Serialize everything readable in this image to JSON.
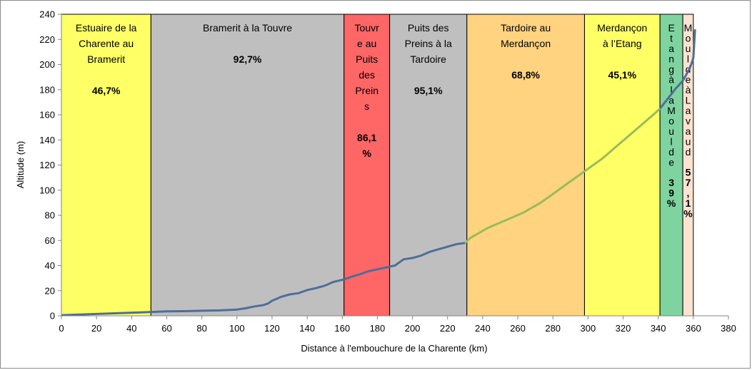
{
  "chart_data": {
    "type": "line",
    "title": "",
    "xlabel": "Distance à l'embouchure de la Charente (km)",
    "ylabel": "Altitude (m)",
    "xlim": [
      0,
      380
    ],
    "ylim": [
      0,
      240
    ],
    "xticks": [
      0,
      20,
      40,
      60,
      80,
      100,
      120,
      140,
      160,
      180,
      200,
      220,
      240,
      260,
      280,
      300,
      320,
      340,
      360,
      380
    ],
    "yticks": [
      0,
      20,
      40,
      60,
      80,
      100,
      120,
      140,
      160,
      180,
      200,
      220,
      240
    ],
    "grid": false,
    "segments": [
      {
        "x0": 0,
        "x1": 51,
        "color": "#ffff66",
        "label_lines": [
          "Estuaire de la",
          "Charente au",
          "Bramerit"
        ],
        "pct_lines": [
          "46,7%"
        ]
      },
      {
        "x0": 51,
        "x1": 161,
        "color": "#bfbfbf",
        "label_lines": [
          "Bramerit à la Touvre"
        ],
        "pct_lines": [
          "92,7%"
        ]
      },
      {
        "x0": 161,
        "x1": 187,
        "color": "#ff6666",
        "label_lines": [
          "Touvr",
          "e au",
          "Puits",
          "des",
          "Prein",
          "s"
        ],
        "pct_lines": [
          "86,1",
          "%"
        ]
      },
      {
        "x0": 187,
        "x1": 231,
        "color": "#bfbfbf",
        "label_lines": [
          "Puits des",
          "Preins à la",
          "Tardoire"
        ],
        "pct_lines": [
          "95,1%"
        ]
      },
      {
        "x0": 231,
        "x1": 298,
        "color": "#ffd37f",
        "label_lines": [
          "Tardoire au",
          "Merdançon"
        ],
        "pct_lines": [
          "68,8%"
        ]
      },
      {
        "x0": 298,
        "x1": 341,
        "color": "#ffff66",
        "label_lines": [
          "Merdançon",
          "à l’Etang"
        ],
        "pct_lines": [
          "45,1%"
        ]
      },
      {
        "x0": 341,
        "x1": 354,
        "color": "#7fd39f",
        "label_lines": [
          "E",
          "t",
          "a",
          "n",
          "g",
          "à",
          "l",
          "a",
          "M",
          "o",
          "u",
          "l",
          "d",
          "e"
        ],
        "pct_lines": [
          "3",
          "9",
          "%"
        ]
      },
      {
        "x0": 354,
        "x1": 360,
        "color": "#fbe3d1",
        "label_lines": [
          "M",
          "o",
          "u",
          "l",
          "d",
          "e",
          "à",
          "L",
          "a",
          "v",
          "a",
          "u",
          "d"
        ],
        "pct_lines": [
          "5",
          "7",
          ",",
          "1",
          "%"
        ]
      }
    ],
    "series": [
      {
        "points": [
          [
            0,
            0.5
          ],
          [
            10,
            1
          ],
          [
            20,
            1.5
          ],
          [
            30,
            2
          ],
          [
            40,
            2.5
          ],
          [
            50,
            3
          ],
          [
            60,
            3.5
          ],
          [
            70,
            3.7
          ],
          [
            80,
            4
          ],
          [
            90,
            4.3
          ],
          [
            100,
            5
          ],
          [
            105,
            6
          ],
          [
            110,
            7.5
          ],
          [
            115,
            8.5
          ],
          [
            118,
            10
          ],
          [
            120,
            12
          ],
          [
            125,
            15
          ],
          [
            130,
            17
          ],
          [
            135,
            18
          ],
          [
            140,
            20.5
          ],
          [
            145,
            22
          ],
          [
            150,
            24
          ],
          [
            155,
            27
          ],
          [
            161,
            29
          ],
          [
            165,
            31
          ],
          [
            170,
            33
          ],
          [
            175,
            35.5
          ],
          [
            180,
            37
          ],
          [
            185,
            38.5
          ],
          [
            190,
            40
          ],
          [
            195,
            45
          ],
          [
            200,
            46
          ],
          [
            205,
            48
          ],
          [
            210,
            51
          ],
          [
            215,
            53
          ],
          [
            220,
            55
          ],
          [
            225,
            57
          ],
          [
            230,
            58
          ],
          [
            233,
            62
          ],
          [
            238,
            66
          ],
          [
            243,
            70
          ],
          [
            248,
            73
          ],
          [
            253,
            76
          ],
          [
            258,
            79
          ],
          [
            263,
            82
          ],
          [
            268,
            86
          ],
          [
            273,
            90
          ],
          [
            278,
            95
          ],
          [
            283,
            100
          ],
          [
            288,
            105
          ],
          [
            293,
            110
          ],
          [
            298,
            115
          ],
          [
            303,
            120
          ],
          [
            308,
            125
          ],
          [
            313,
            131
          ],
          [
            318,
            137
          ],
          [
            323,
            143
          ],
          [
            328,
            149
          ],
          [
            333,
            155
          ],
          [
            338,
            161
          ],
          [
            341,
            165
          ],
          [
            345,
            172
          ],
          [
            350,
            181
          ],
          [
            354,
            187
          ],
          [
            358,
            197
          ],
          [
            360,
            205
          ],
          [
            361,
            228
          ]
        ],
        "segment_colors": [
          "#4f6d9b",
          "#9bbb59"
        ],
        "color_switch_x": [
          [
            0,
            230,
            "#4f6d9b"
          ],
          [
            230,
            341,
            "#9bbb59"
          ],
          [
            341,
            361,
            "#4f6d9b"
          ]
        ]
      }
    ]
  }
}
